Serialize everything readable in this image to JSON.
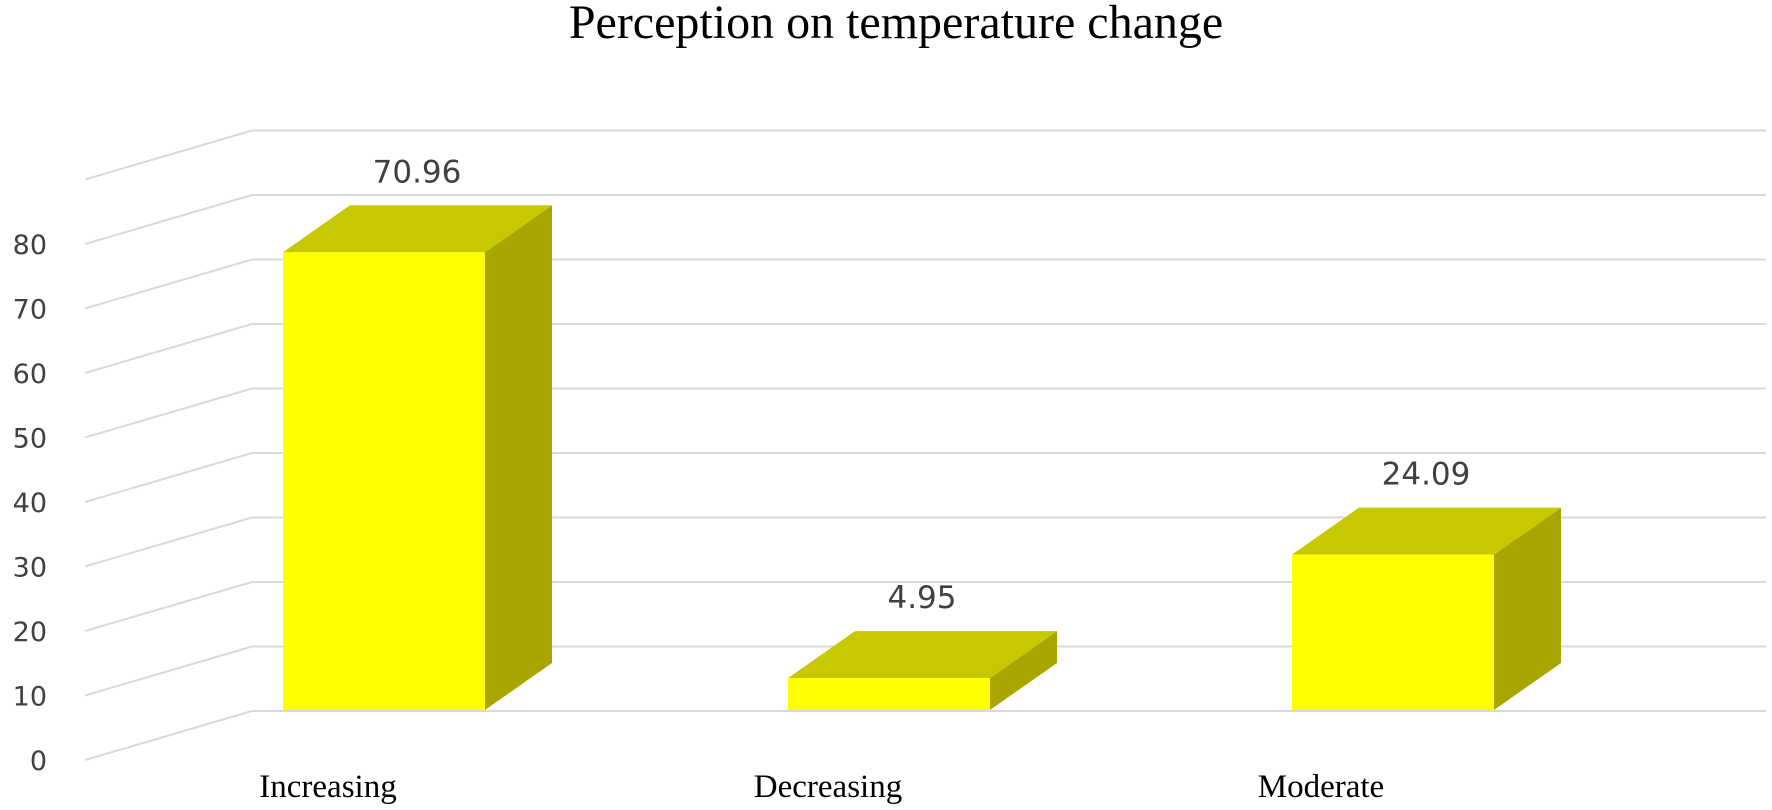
{
  "chart_data": {
    "type": "bar",
    "title": "Perception on temperature change",
    "categories": [
      "Increasing",
      "Decreasing",
      "Moderate"
    ],
    "values": [
      70.96,
      4.95,
      24.09
    ],
    "value_labels": [
      "70.96",
      "4.95",
      "24.09"
    ],
    "y_ticks": [
      "0",
      "10",
      "20",
      "30",
      "40",
      "50",
      "60",
      "70",
      "80"
    ],
    "ylim": [
      0,
      80
    ],
    "grid": true,
    "legend": "none",
    "style": "3d-column",
    "colors": {
      "front": "#ffff00",
      "top": "#c8c800",
      "side": "#a8a500",
      "grid": "#d9d9d9"
    }
  }
}
